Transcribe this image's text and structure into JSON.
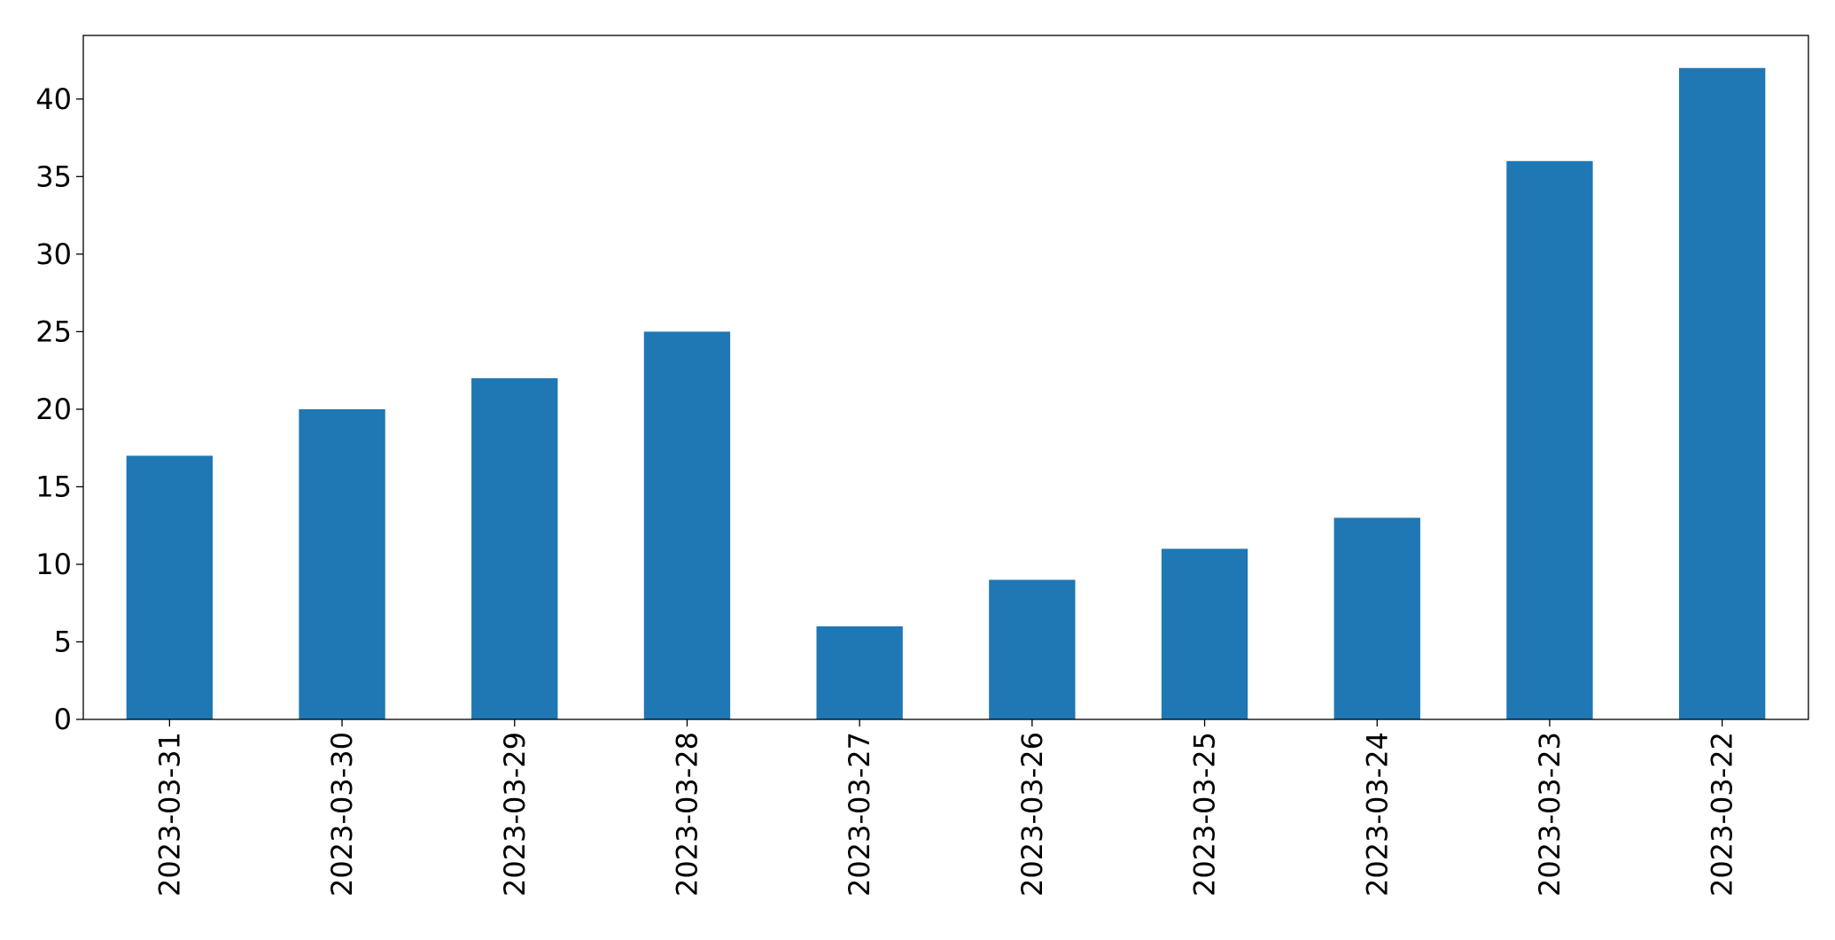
{
  "chart_data": {
    "type": "bar",
    "categories": [
      "2023-03-31",
      "2023-03-30",
      "2023-03-29",
      "2023-03-28",
      "2023-03-27",
      "2023-03-26",
      "2023-03-25",
      "2023-03-24",
      "2023-03-23",
      "2023-03-22"
    ],
    "values": [
      17,
      20,
      22,
      25,
      6,
      9,
      11,
      13,
      36,
      42
    ],
    "color": "#1f77b4",
    "ylim": [
      0,
      44.1
    ],
    "yticks": [
      0,
      5,
      10,
      15,
      20,
      25,
      30,
      35,
      40
    ],
    "grid": false
  }
}
